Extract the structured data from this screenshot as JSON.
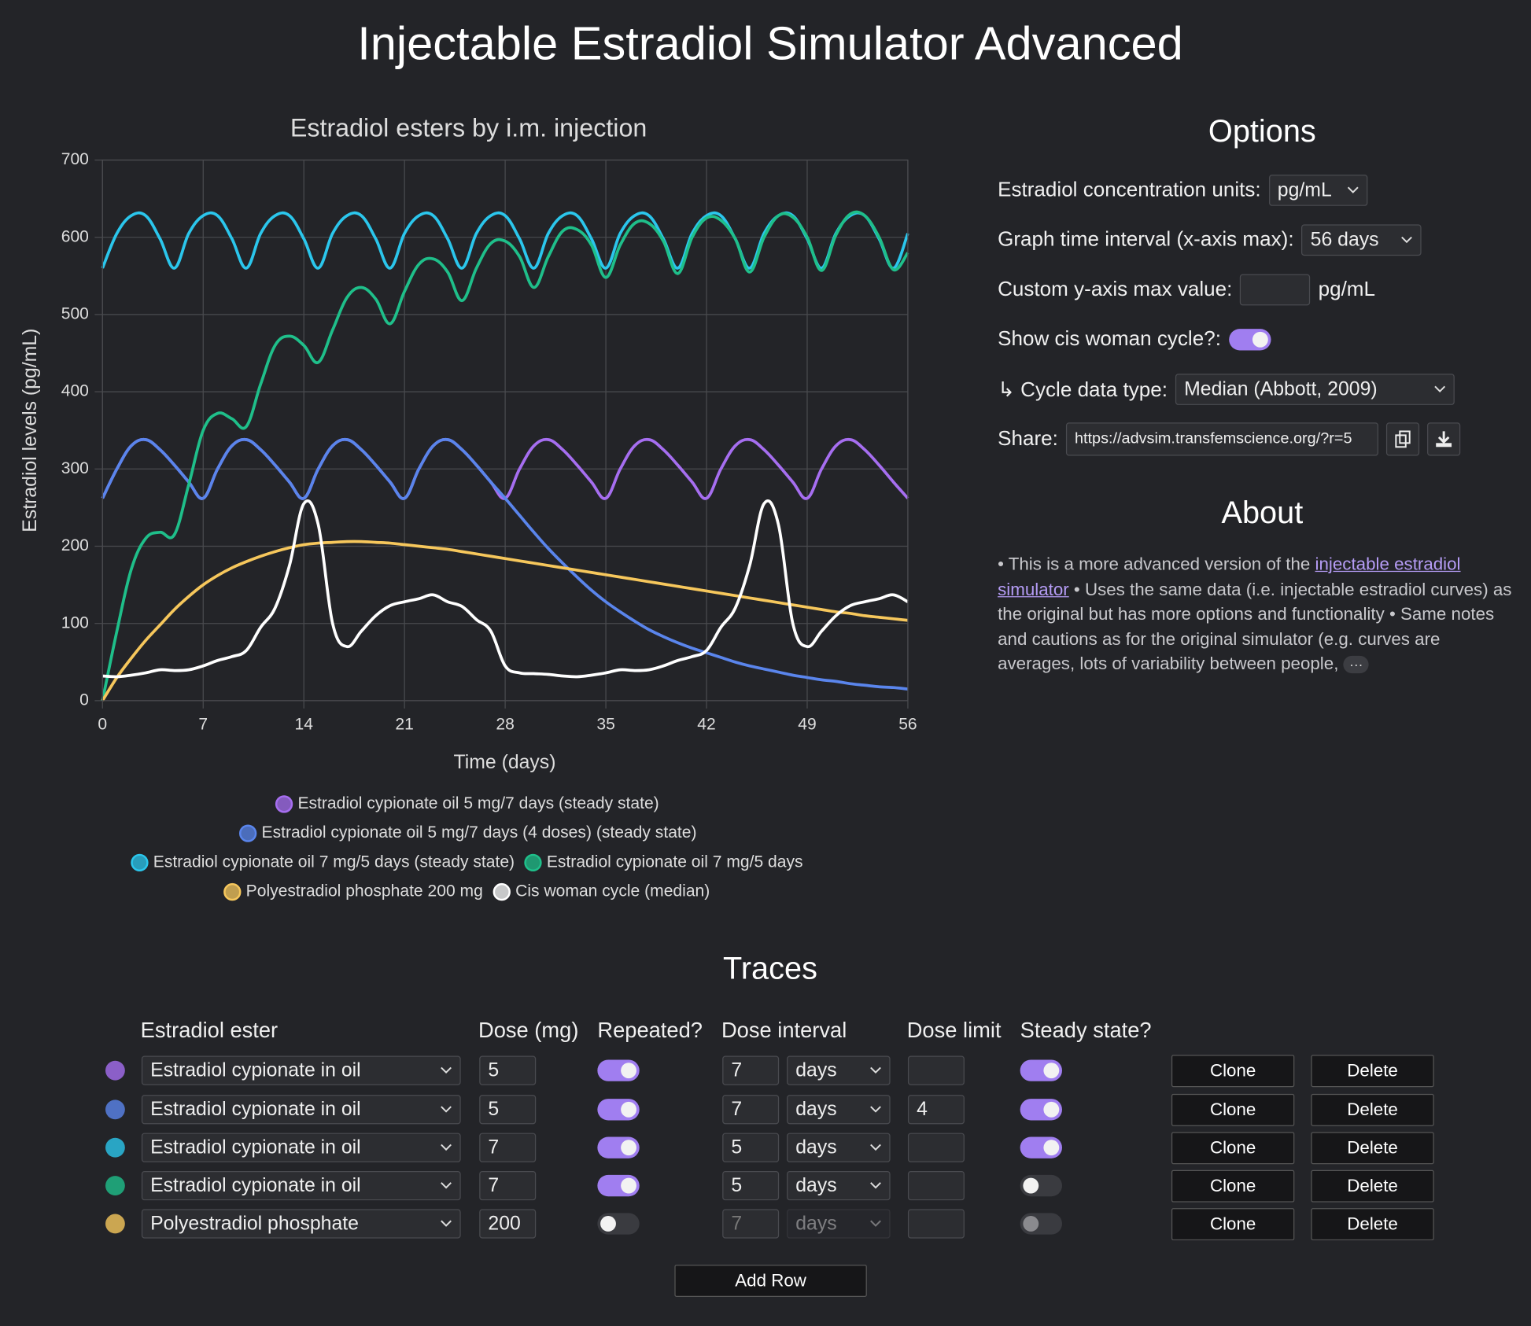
{
  "title": "Injectable Estradiol Simulator Advanced",
  "chart_data": {
    "type": "line",
    "title": "Estradiol esters by i.m. injection",
    "x_label": "Time (days)",
    "y_label": "Estradiol levels (pg/mL)",
    "x": [
      0,
      1,
      2,
      3,
      4,
      5,
      6,
      7,
      8,
      9,
      10,
      11,
      12,
      13,
      14,
      15,
      16,
      17,
      18,
      19,
      20,
      21,
      22,
      23,
      24,
      25,
      26,
      27,
      28,
      29,
      30,
      31,
      32,
      33,
      34,
      35,
      36,
      37,
      38,
      39,
      40,
      41,
      42,
      43,
      44,
      45,
      46,
      47,
      48,
      49,
      50,
      51,
      52,
      53,
      54,
      55,
      56
    ],
    "xlim": [
      0,
      56
    ],
    "xticks": [
      0,
      7,
      14,
      21,
      28,
      35,
      42,
      49,
      56
    ],
    "ylim": [
      0,
      700
    ],
    "yticks": [
      0,
      100,
      200,
      300,
      400,
      500,
      600,
      700
    ],
    "grid": true,
    "series": [
      {
        "name": "Estradiol cypionate oil 5 mg/7 days (steady state)",
        "color": "#a66ef0",
        "values": [
          262,
          300,
          330,
          338,
          325,
          305,
          283,
          262,
          300,
          330,
          338,
          325,
          305,
          283,
          262,
          300,
          330,
          338,
          325,
          305,
          283,
          262,
          300,
          330,
          338,
          325,
          305,
          283,
          262,
          300,
          330,
          338,
          325,
          305,
          283,
          262,
          300,
          330,
          338,
          325,
          305,
          283,
          262,
          300,
          330,
          338,
          325,
          305,
          283,
          262,
          300,
          330,
          338,
          325,
          305,
          283,
          262
        ]
      },
      {
        "name": "Estradiol cypionate oil 5 mg/7 days (4 doses) (steady state)",
        "color": "#5a85ec",
        "values": [
          262,
          300,
          330,
          338,
          325,
          305,
          283,
          262,
          300,
          330,
          338,
          325,
          305,
          283,
          262,
          300,
          330,
          338,
          325,
          305,
          283,
          262,
          300,
          330,
          338,
          325,
          305,
          283,
          262,
          240,
          218,
          197,
          178,
          160,
          143,
          128,
          115,
          103,
          92,
          83,
          75,
          68,
          62,
          56,
          50,
          45,
          41,
          37,
          33,
          30,
          27,
          25,
          22,
          20,
          18,
          17,
          15
        ]
      },
      {
        "name": "Estradiol cypionate oil 7 mg/5 days (steady state)",
        "color": "#2bc6ec",
        "values": [
          560,
          605,
          628,
          628,
          598,
          560,
          605,
          628,
          628,
          598,
          560,
          605,
          628,
          628,
          598,
          560,
          605,
          628,
          628,
          598,
          560,
          605,
          628,
          628,
          598,
          560,
          605,
          628,
          628,
          598,
          560,
          605,
          628,
          628,
          598,
          560,
          605,
          628,
          628,
          598,
          560,
          605,
          628,
          628,
          598,
          560,
          605,
          628,
          628,
          598,
          560,
          605,
          628,
          628,
          598,
          560,
          605
        ]
      },
      {
        "name": "Estradiol cypionate oil 7 mg/5 days",
        "color": "#1fbf8a",
        "values": [
          0,
          90,
          170,
          210,
          218,
          215,
          280,
          350,
          372,
          365,
          355,
          410,
          460,
          472,
          460,
          438,
          480,
          522,
          535,
          520,
          488,
          530,
          565,
          572,
          555,
          518,
          560,
          592,
          595,
          575,
          535,
          575,
          608,
          610,
          590,
          548,
          590,
          618,
          618,
          595,
          553,
          600,
          625,
          622,
          598,
          555,
          600,
          628,
          626,
          600,
          557,
          603,
          630,
          628,
          600,
          558,
          580
        ]
      },
      {
        "name": "Polyestradiol phosphate 200 mg",
        "color": "#f6c75c",
        "values": [
          0,
          30,
          55,
          78,
          98,
          118,
          135,
          150,
          162,
          172,
          180,
          187,
          193,
          198,
          202,
          204,
          205,
          206,
          206,
          205,
          204,
          202,
          200,
          198,
          196,
          193,
          190,
          187,
          184,
          181,
          178,
          175,
          172,
          169,
          166,
          163,
          160,
          157,
          154,
          151,
          148,
          145,
          142,
          139,
          136,
          133,
          130,
          127,
          124,
          121,
          118,
          115,
          113,
          110,
          108,
          106,
          104
        ]
      },
      {
        "name": "Cis woman cycle (median)",
        "color": "#ffffff",
        "values": [
          32,
          31,
          33,
          36,
          40,
          39,
          40,
          45,
          52,
          57,
          65,
          95,
          120,
          175,
          255,
          228,
          100,
          70,
          90,
          110,
          123,
          128,
          132,
          137,
          128,
          122,
          105,
          90,
          45,
          36,
          35,
          34,
          32,
          31,
          33,
          36,
          40,
          39,
          40,
          45,
          52,
          57,
          65,
          95,
          120,
          175,
          255,
          228,
          100,
          70,
          90,
          110,
          123,
          128,
          132,
          137,
          128
        ]
      }
    ]
  },
  "options": {
    "title": "Options",
    "units": {
      "label": "Estradiol concentration units:",
      "value": "pg/mL"
    },
    "interval": {
      "label": "Graph time interval (x-axis max):",
      "value": "56 days"
    },
    "ymax": {
      "label": "Custom y-axis max value:",
      "unit": "pg/mL"
    },
    "cycle": {
      "label": "Show cis woman cycle?:",
      "on": true
    },
    "cycle_type": {
      "label": "↳ Cycle data type:",
      "value": "Median (Abbott, 2009)"
    },
    "share": {
      "label": "Share:",
      "value": "https://advsim.transfemscience.org/?r=5"
    }
  },
  "about": {
    "title": "About",
    "text_1": "• This is a more advanced version of the ",
    "link": "injectable estradiol simulator",
    "text_2": " • Uses the same data (i.e. injectable estradiol curves) as the original but has more options and functionality • Same notes and cautions as for the original simulator (e.g. curves are averages, lots of variability between people,",
    "more": "···"
  },
  "traces": {
    "title": "Traces",
    "headers": [
      "Estradiol ester",
      "Dose (mg)",
      "Repeated?",
      "Dose interval",
      "Dose limit",
      "Steady state?"
    ],
    "clone": "Clone",
    "delete": "Delete",
    "rows": [
      {
        "color": "#a66ef0",
        "ester": "Estradiol cypionate in oil",
        "dose": 5,
        "repeated": true,
        "interval": 7,
        "unit": "days",
        "steady_state": true
      },
      {
        "color": "#5a85ec",
        "ester": "Estradiol cypionate in oil",
        "dose": 5,
        "repeated": true,
        "interval": 7,
        "unit": "days",
        "dose_limit": 4,
        "steady_state": true
      },
      {
        "color": "#2bc6ec",
        "ester": "Estradiol cypionate in oil",
        "dose": 7,
        "repeated": true,
        "interval": 5,
        "unit": "days",
        "steady_state": true
      },
      {
        "color": "#1fbf8a",
        "ester": "Estradiol cypionate in oil",
        "dose": 7,
        "repeated": true,
        "interval": 5,
        "unit": "days",
        "steady_state": false
      },
      {
        "color": "#f6c75c",
        "ester": "Polyestradiol phosphate",
        "dose": 200,
        "repeated": false,
        "interval": 7,
        "unit": "days",
        "steady_state": false,
        "disabled": true
      }
    ],
    "add_row": "Add Row"
  }
}
